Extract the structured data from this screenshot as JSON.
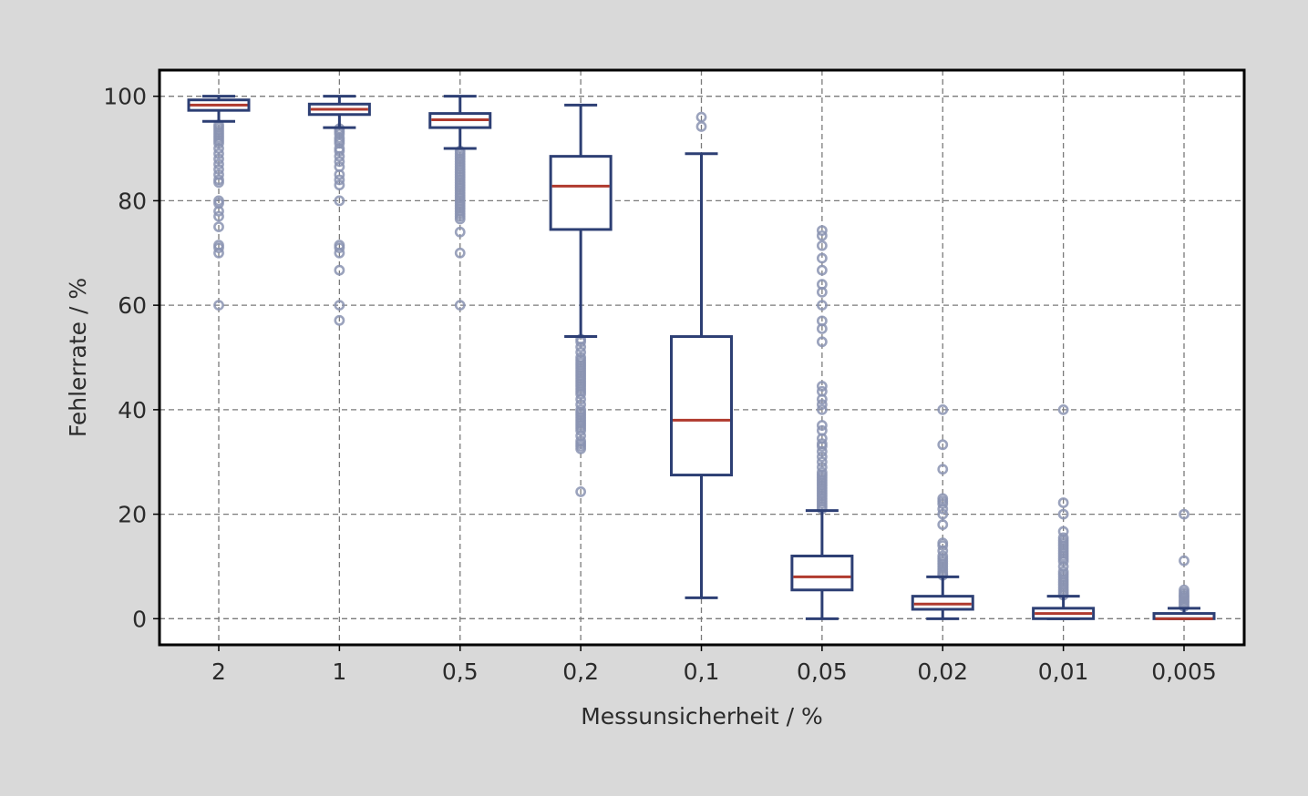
{
  "chart_data": {
    "type": "box",
    "xlabel": "Messunsicherheit / %",
    "ylabel": "Fehlerrate / %",
    "ylim": [
      -5,
      105
    ],
    "yticks": [
      0,
      20,
      40,
      60,
      80,
      100
    ],
    "grid": true,
    "categories": [
      "2",
      "1",
      "0,5",
      "0,2",
      "0,1",
      "0,05",
      "0,02",
      "0,01",
      "0,005"
    ],
    "boxes": [
      {
        "whisker_low": 95.2,
        "q1": 97.3,
        "median": 98.3,
        "q3": 99.3,
        "whisker_high": 100,
        "outliers": [
          94.5,
          94,
          93.5,
          93,
          92.5,
          92,
          91.5,
          91,
          90,
          89,
          88,
          87,
          86,
          85,
          84,
          83.5,
          80,
          79.5,
          78,
          77,
          75,
          71.5,
          71,
          70,
          60
        ]
      },
      {
        "whisker_low": 94,
        "q1": 96.5,
        "median": 97.5,
        "q3": 98.5,
        "whisker_high": 100,
        "outliers": [
          93.8,
          93.3,
          92.8,
          92,
          91.5,
          91,
          90,
          89.5,
          88.5,
          87.5,
          86.5,
          85,
          84,
          83,
          80,
          71.5,
          71,
          70,
          66.7,
          60,
          57.1
        ]
      },
      {
        "whisker_low": 90,
        "q1": 94,
        "median": 95.5,
        "q3": 96.7,
        "whisker_high": 100,
        "outliers": [
          89.5,
          89,
          88.5,
          88,
          87.5,
          87,
          86.5,
          86,
          85.5,
          85,
          84.5,
          84,
          83.5,
          83,
          82.5,
          82,
          81.5,
          81,
          80.5,
          80,
          79.5,
          79,
          78.5,
          78,
          77.5,
          77,
          76.5,
          74,
          70,
          60
        ]
      },
      {
        "whisker_low": 54,
        "q1": 74.5,
        "median": 82.8,
        "q3": 88.5,
        "whisker_high": 98.3,
        "outliers": [
          53.5,
          53,
          52,
          51,
          50,
          49.5,
          49,
          48.5,
          48,
          47.5,
          47,
          46.5,
          46,
          45.5,
          45,
          44.5,
          44,
          43.5,
          43,
          42,
          41,
          40,
          39.5,
          39,
          38.5,
          38,
          37.5,
          37,
          36.5,
          36,
          35,
          34,
          33.5,
          33,
          32.5,
          24.3
        ]
      },
      {
        "whisker_low": 4,
        "q1": 27.5,
        "median": 38,
        "q3": 54,
        "whisker_high": 89,
        "outliers": [
          96,
          94.2
        ]
      },
      {
        "whisker_low": 0,
        "q1": 5.5,
        "median": 8,
        "q3": 12,
        "whisker_high": 20.7,
        "outliers": [
          21,
          21.5,
          22,
          22.5,
          23,
          23.5,
          24,
          24.5,
          25,
          25.5,
          26,
          26.5,
          27,
          27.5,
          28,
          29,
          30,
          31,
          32,
          33,
          33.5,
          34.5,
          36,
          37,
          40,
          41,
          42,
          43.5,
          44.5,
          53,
          55.5,
          57,
          60,
          62.5,
          64,
          66.7,
          69,
          71.4,
          73.3,
          74.3
        ]
      },
      {
        "whisker_low": 0,
        "q1": 1.8,
        "median": 2.8,
        "q3": 4.3,
        "whisker_high": 8,
        "outliers": [
          8.3,
          8.6,
          9,
          9.5,
          10,
          10.5,
          11,
          11.5,
          12,
          13,
          14,
          14.5,
          18,
          20,
          21,
          22,
          22.5,
          23,
          28.6,
          33.3,
          40
        ]
      },
      {
        "whisker_low": 0,
        "q1": 0,
        "median": 1,
        "q3": 2,
        "whisker_high": 4.3,
        "outliers": [
          4.5,
          5,
          5.5,
          6,
          6.5,
          7,
          7.5,
          8,
          8.5,
          9,
          10,
          11,
          11.5,
          12,
          12.5,
          13,
          13.5,
          14,
          14.5,
          15,
          15.5,
          16.7,
          20,
          22.2,
          40
        ]
      },
      {
        "whisker_low": 0,
        "q1": 0,
        "median": 0,
        "q3": 1,
        "whisker_high": 2,
        "outliers": [
          2.3,
          2.6,
          3,
          3.3,
          3.6,
          4,
          4.3,
          4.6,
          5,
          5.5,
          11.1,
          20
        ]
      }
    ],
    "colors": {
      "box": "#2d3f74",
      "median": "#b03a2e",
      "outlier": "#8a93b1",
      "grid": "#7a7a7a",
      "plot_bg": "#ffffff",
      "page_bg": "#d9d9d9",
      "frame": "#000000"
    }
  }
}
